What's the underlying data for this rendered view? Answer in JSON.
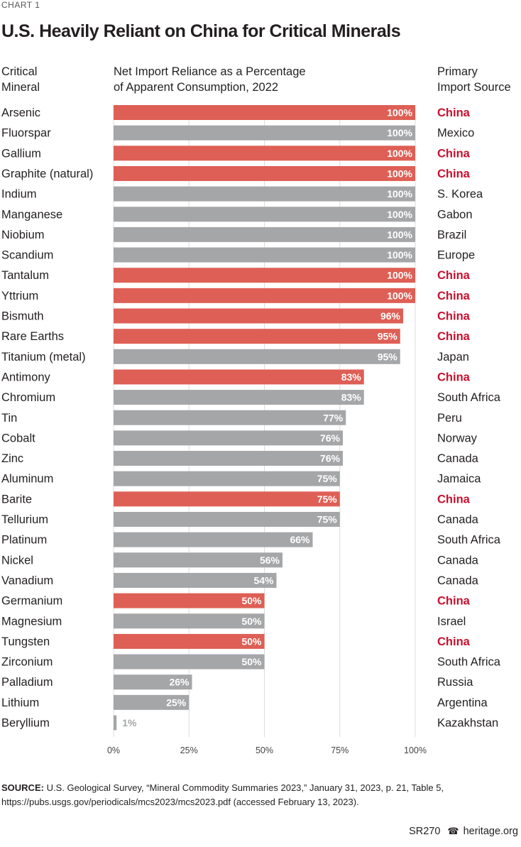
{
  "chart_label": "CHART 1",
  "title": "U.S. Heavily Reliant on China for Critical Minerals",
  "headers": {
    "mineral": [
      "Critical",
      "Mineral"
    ],
    "measure": [
      "Net Import Reliance as a Percentage",
      "of Apparent Consumption, 2022"
    ],
    "source": [
      "Primary",
      "Import Source"
    ]
  },
  "colors": {
    "china_bar": "#de5f55",
    "other_bar": "#a5a6a8",
    "china_text": "#c8102e"
  },
  "chart_data": {
    "type": "bar",
    "orientation": "horizontal",
    "title": "U.S. Heavily Reliant on China for Critical Minerals",
    "xlabel": "Net Import Reliance as a Percentage of Apparent Consumption, 2022",
    "xlim": [
      0,
      100
    ],
    "xticks": [
      "0%",
      "25%",
      "50%",
      "75%",
      "100%"
    ],
    "categories": [
      "Arsenic",
      "Fluorspar",
      "Gallium",
      "Graphite (natural)",
      "Indium",
      "Manganese",
      "Niobium",
      "Scandium",
      "Tantalum",
      "Yttrium",
      "Bismuth",
      "Rare Earths",
      "Titanium (metal)",
      "Antimony",
      "Chromium",
      "Tin",
      "Cobalt",
      "Zinc",
      "Aluminum",
      "Barite",
      "Tellurium",
      "Platinum",
      "Nickel",
      "Vanadium",
      "Germanium",
      "Magnesium",
      "Tungsten",
      "Zirconium",
      "Palladium",
      "Lithium",
      "Beryllium"
    ],
    "values": [
      100,
      100,
      100,
      100,
      100,
      100,
      100,
      100,
      100,
      100,
      96,
      95,
      95,
      83,
      83,
      77,
      76,
      76,
      75,
      75,
      75,
      66,
      56,
      54,
      50,
      50,
      50,
      50,
      26,
      25,
      1
    ],
    "value_labels": [
      "100%",
      "100%",
      "100%",
      "100%",
      "100%",
      "100%",
      "100%",
      "100%",
      "100%",
      "100%",
      "96%",
      "95%",
      "95%",
      "83%",
      "83%",
      "77%",
      "76%",
      "76%",
      "75%",
      "75%",
      "75%",
      "66%",
      "56%",
      "54%",
      "50%",
      "50%",
      "50%",
      "50%",
      "26%",
      "25%",
      "1%"
    ],
    "sources": [
      "China",
      "Mexico",
      "China",
      "China",
      "S. Korea",
      "Gabon",
      "Brazil",
      "Europe",
      "China",
      "China",
      "China",
      "China",
      "Japan",
      "China",
      "South Africa",
      "Peru",
      "Norway",
      "Canada",
      "Jamaica",
      "China",
      "Canada",
      "South Africa",
      "Canada",
      "Canada",
      "China",
      "Israel",
      "China",
      "South Africa",
      "Russia",
      "Argentina",
      "Kazakhstan"
    ]
  },
  "footnote": {
    "label": "SOURCE:",
    "text": " U.S. Geological Survey, “Mineral Commodity Summaries 2023,” January 31, 2023, p. 21, Table 5, https://pubs.usgs.gov/periodicals/mcs2023/mcs2023.pdf (accessed February 13, 2023)."
  },
  "footer": {
    "report": "SR270",
    "bell_icon": "☎",
    "site": "heritage.org"
  }
}
